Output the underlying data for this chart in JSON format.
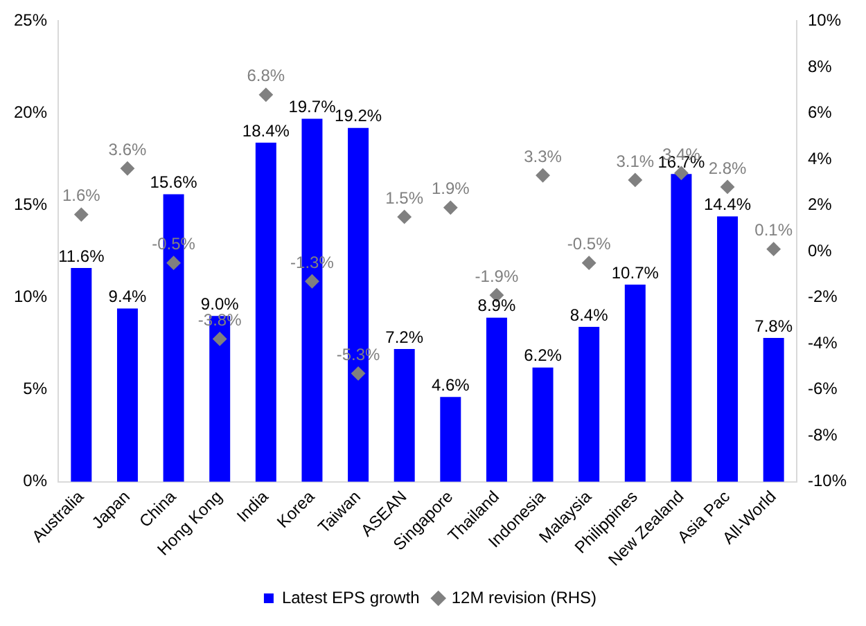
{
  "chart_data": {
    "type": "bar",
    "categories": [
      "Australia",
      "Japan",
      "China",
      "Hong Kong",
      "India",
      "Korea",
      "Taiwan",
      "ASEAN",
      "Singapore",
      "Thailand",
      "Indonesia",
      "Malaysia",
      "Philippines",
      "New Zealand",
      "Asia Pac",
      "All-World"
    ],
    "series": [
      {
        "name": "Latest EPS growth",
        "color": "#0000ff",
        "values": [
          11.6,
          9.4,
          15.6,
          9.0,
          18.4,
          19.7,
          19.2,
          7.2,
          4.6,
          8.9,
          6.2,
          8.4,
          10.7,
          16.7,
          14.4,
          7.8
        ],
        "value_labels": [
          "11.6%",
          "9.4%",
          "15.6%",
          "9.0%",
          "18.4%",
          "19.7%",
          "19.2%",
          "7.2%",
          "4.6%",
          "8.9%",
          "6.2%",
          "8.4%",
          "10.7%",
          "16.7%",
          "14.4%",
          "7.8%"
        ]
      },
      {
        "name": "12M revision (RHS)",
        "type": "scatter",
        "axis": "y2",
        "marker": "diamond",
        "color": "#808080",
        "values": [
          1.6,
          3.6,
          -0.5,
          -3.8,
          6.8,
          -1.3,
          -5.3,
          1.5,
          1.9,
          -1.9,
          3.3,
          -0.5,
          3.1,
          3.4,
          2.8,
          0.1
        ],
        "value_labels": [
          "1.6%",
          "3.6%",
          "-0.5%",
          "-3.8%",
          "6.8%",
          "-1.3%",
          "-5.3%",
          "1.5%",
          "1.9%",
          "-1.9%",
          "3.3%",
          "-0.5%",
          "3.1%",
          "3.4%",
          "2.8%",
          "0.1%"
        ]
      }
    ],
    "ylim": [
      0,
      25
    ],
    "yticks": [
      {
        "value": 0,
        "label": "0%"
      },
      {
        "value": 5,
        "label": "5%"
      },
      {
        "value": 10,
        "label": "10%"
      },
      {
        "value": 15,
        "label": "15%"
      },
      {
        "value": 20,
        "label": "20%"
      },
      {
        "value": 25,
        "label": "25%"
      }
    ],
    "y2lim": [
      -10,
      10
    ],
    "y2ticks": [
      {
        "value": -10,
        "label": "-10%"
      },
      {
        "value": -8,
        "label": "-8%"
      },
      {
        "value": -6,
        "label": "-6%"
      },
      {
        "value": -4,
        "label": "-4%"
      },
      {
        "value": -2,
        "label": "-2%"
      },
      {
        "value": 0,
        "label": "0%"
      },
      {
        "value": 2,
        "label": "2%"
      },
      {
        "value": 4,
        "label": "4%"
      },
      {
        "value": 6,
        "label": "6%"
      },
      {
        "value": 8,
        "label": "8%"
      },
      {
        "value": 10,
        "label": "10%"
      }
    ],
    "grid": false,
    "legend": "bottom"
  }
}
